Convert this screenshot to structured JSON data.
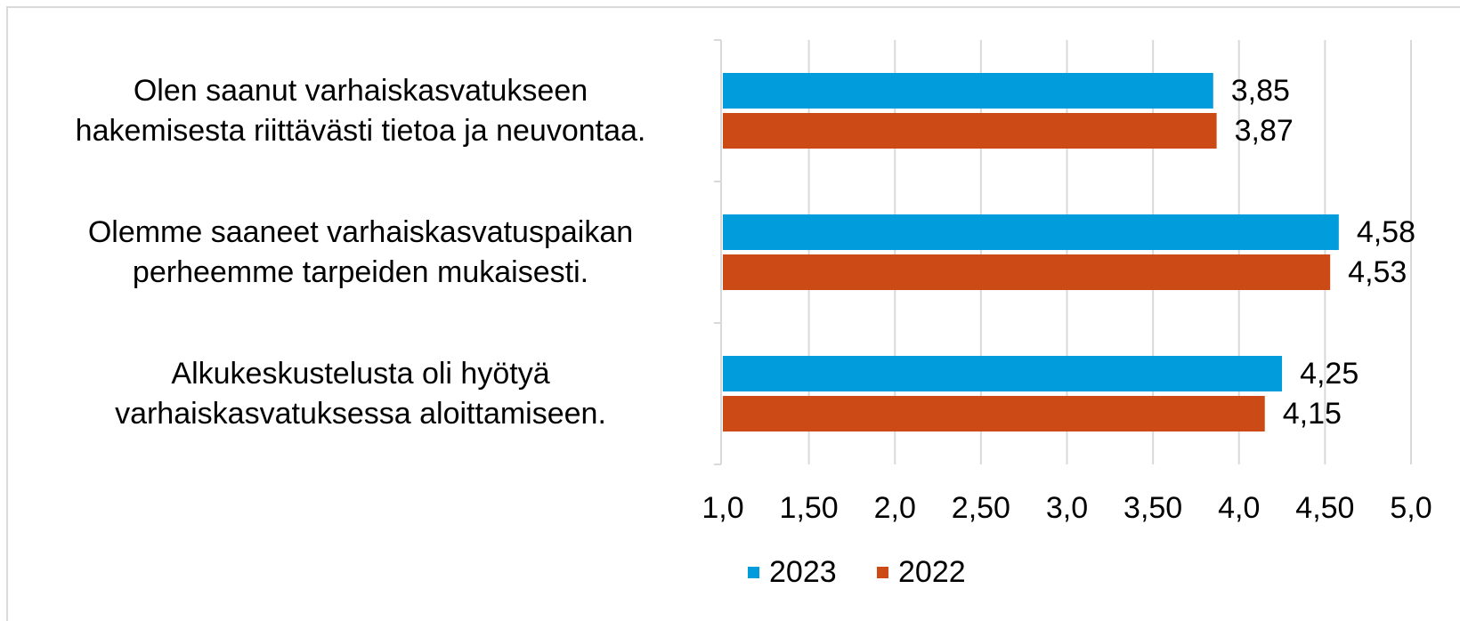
{
  "chart_data": {
    "type": "bar",
    "orientation": "horizontal",
    "categories": [
      "Olen saanut varhaiskasvatukseen\nhakemisesta riittävästi tietoa ja neuvontaa.",
      "Olemme saaneet varhaiskasvatuspaikan\nperheemme tarpeiden mukaisesti.",
      "Alkukeskustelusta oli hyötyä\nvarhaiskasvatuksessa aloittamiseen."
    ],
    "series": [
      {
        "name": "2023",
        "color": "#009cdb",
        "values": [
          3.85,
          4.58,
          4.25
        ],
        "value_labels": [
          "3,85",
          "4,58",
          "4,25"
        ]
      },
      {
        "name": "2022",
        "color": "#cc4a15",
        "values": [
          3.87,
          4.53,
          4.15
        ],
        "value_labels": [
          "3,87",
          "4,53",
          "4,15"
        ]
      }
    ],
    "xlim": [
      1.0,
      5.0
    ],
    "xticks": [
      {
        "value": 1.0,
        "label": "1,0"
      },
      {
        "value": 1.5,
        "label": "1,50"
      },
      {
        "value": 2.0,
        "label": "2,0"
      },
      {
        "value": 2.5,
        "label": "2,50"
      },
      {
        "value": 3.0,
        "label": "3,0"
      },
      {
        "value": 3.5,
        "label": "3,50"
      },
      {
        "value": 4.0,
        "label": "4,0"
      },
      {
        "value": 4.5,
        "label": "4,50"
      },
      {
        "value": 5.0,
        "label": "5,0"
      }
    ],
    "grid": true,
    "legend": "bottom"
  }
}
